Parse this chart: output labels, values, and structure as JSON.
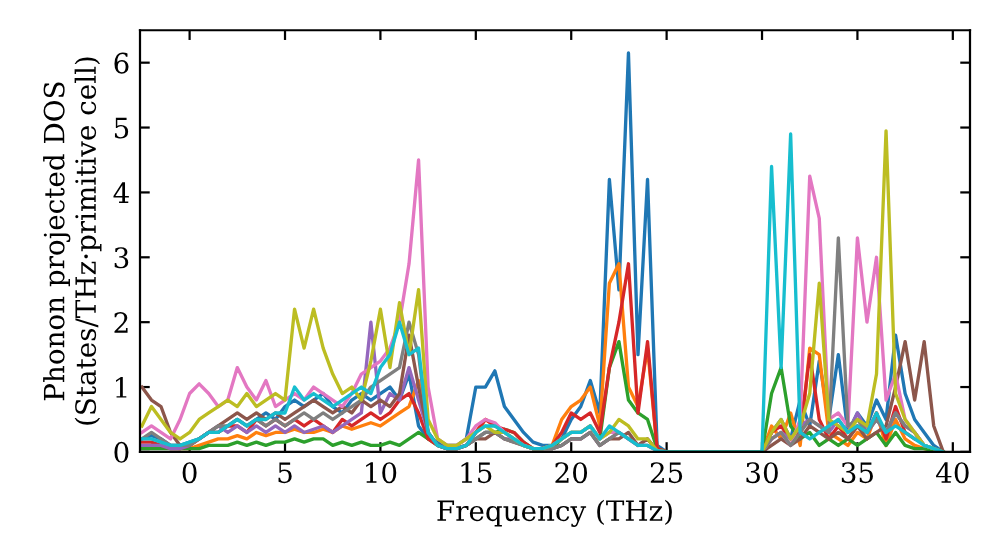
{
  "chart_data": {
    "type": "line",
    "xlabel": "Frequency (THz)",
    "ylabel": "Phonon projected DOS\n(States/THz·primitive cell)",
    "xlim": [
      -2.6,
      40.9
    ],
    "ylim": [
      0,
      6.5
    ],
    "xticks": [
      0,
      5,
      10,
      15,
      20,
      25,
      30,
      35,
      40
    ],
    "yticks": [
      0,
      1,
      2,
      3,
      4,
      5,
      6
    ],
    "grid": false,
    "legend": false,
    "marker": "none",
    "line_style": "solid",
    "x": [
      -2.5,
      -2,
      -1.5,
      -1,
      -0.5,
      0,
      0.5,
      1,
      1.5,
      2,
      2.5,
      3,
      3.5,
      4,
      4.5,
      5,
      5.5,
      6,
      6.5,
      7,
      7.5,
      8,
      8.5,
      9,
      9.5,
      10,
      10.5,
      11,
      11.5,
      12,
      12.5,
      13,
      13.5,
      14,
      14.5,
      15,
      15.5,
      16,
      16.5,
      17,
      17.5,
      18,
      18.5,
      19,
      19.5,
      20,
      20.5,
      21,
      21.5,
      22,
      22.5,
      23,
      23.5,
      24,
      24.5,
      25,
      30,
      30.5,
      31,
      31.5,
      32,
      32.5,
      33,
      33.5,
      34,
      34.5,
      35,
      35.5,
      36,
      36.5,
      37,
      37.5,
      38,
      38.5,
      39,
      39.5
    ],
    "series": [
      {
        "color": "#1f77b4",
        "values": [
          0.2,
          0.25,
          0.2,
          0.1,
          0.1,
          0.15,
          0.2,
          0.3,
          0.3,
          0.4,
          0.5,
          0.4,
          0.5,
          0.6,
          0.5,
          0.7,
          0.8,
          0.7,
          0.8,
          0.9,
          0.7,
          0.6,
          0.8,
          0.9,
          0.8,
          0.9,
          1.0,
          0.8,
          1.2,
          0.4,
          0.2,
          0.15,
          0.1,
          0.1,
          0.2,
          1.0,
          1.0,
          1.25,
          0.7,
          0.5,
          0.3,
          0.15,
          0.1,
          0.1,
          0.2,
          0.5,
          0.7,
          1.1,
          0.6,
          4.2,
          2.5,
          6.15,
          1.5,
          4.2,
          0.1,
          0,
          0,
          0.3,
          0.5,
          0.2,
          0.8,
          0.4,
          1.4,
          0.5,
          1.5,
          0.3,
          0.6,
          0.4,
          0.8,
          0.5,
          1.8,
          0.9,
          0.5,
          0.3,
          0.1,
          0
        ]
      },
      {
        "color": "#ff7f0e",
        "values": [
          null,
          null,
          null,
          null,
          0.05,
          0.05,
          0.1,
          0.15,
          0.2,
          0.2,
          0.25,
          0.2,
          0.3,
          0.25,
          0.3,
          0.3,
          0.35,
          0.3,
          0.3,
          0.35,
          0.3,
          0.4,
          0.35,
          0.4,
          0.45,
          0.4,
          0.5,
          0.6,
          0.7,
          1.1,
          0.3,
          0.1,
          0.05,
          0.05,
          0.1,
          0.3,
          0.5,
          0.4,
          0.3,
          0.2,
          0.1,
          0.05,
          0.05,
          0.1,
          0.5,
          0.7,
          0.8,
          1.0,
          0.4,
          2.6,
          2.9,
          1.0,
          0.7,
          1.6,
          0.05,
          0,
          0,
          0.4,
          0.2,
          0.6,
          0.1,
          1.6,
          1.5,
          0.3,
          0.2,
          0.1,
          0.3,
          0.2,
          0.6,
          0.1,
          0.5,
          0.2,
          0.1,
          0.05,
          0.02,
          0
        ]
      },
      {
        "color": "#2ca02c",
        "values": [
          0.05,
          0.05,
          0.05,
          0.05,
          0.05,
          0.05,
          0.05,
          0.1,
          0.1,
          0.1,
          0.15,
          0.1,
          0.15,
          0.1,
          0.15,
          0.15,
          0.2,
          0.15,
          0.2,
          0.2,
          0.1,
          0.15,
          0.1,
          0.15,
          0.1,
          0.1,
          0.15,
          0.1,
          0.2,
          0.3,
          0.2,
          0.1,
          0.05,
          0.05,
          0.1,
          0.2,
          0.3,
          0.3,
          0.35,
          0.3,
          0.15,
          0.05,
          0.05,
          0.05,
          0.2,
          0.3,
          0.3,
          0.4,
          0.2,
          1.3,
          1.7,
          0.8,
          0.6,
          0.5,
          0.05,
          0,
          0,
          0.9,
          1.3,
          0.4,
          0.2,
          0.3,
          0.1,
          0.2,
          0.1,
          0.2,
          0.1,
          0.2,
          0.3,
          0.1,
          0.3,
          0.1,
          0.05,
          0.05,
          0.02,
          0
        ]
      },
      {
        "color": "#d62728",
        "values": [
          0.15,
          0.15,
          0.1,
          0.05,
          0.05,
          0.1,
          0.2,
          0.3,
          0.3,
          0.4,
          0.4,
          0.3,
          0.5,
          0.4,
          0.5,
          0.4,
          0.5,
          0.4,
          0.5,
          0.4,
          0.3,
          0.5,
          0.4,
          0.5,
          0.6,
          0.5,
          0.6,
          0.8,
          0.9,
          0.6,
          0.2,
          0.1,
          0.05,
          0.05,
          0.1,
          0.3,
          0.5,
          0.4,
          0.35,
          0.3,
          0.15,
          0.05,
          0.05,
          0.1,
          0.3,
          0.6,
          0.5,
          0.6,
          0.3,
          1.3,
          2.0,
          2.9,
          0.6,
          1.7,
          0.05,
          0,
          0,
          0.3,
          0.4,
          0.2,
          0.3,
          1.5,
          0.5,
          0.2,
          0.4,
          0.2,
          0.4,
          0.3,
          0.6,
          0.2,
          0.7,
          0.3,
          0.2,
          null,
          null,
          null
        ]
      },
      {
        "color": "#9467bd",
        "values": [
          0.1,
          0.1,
          0.1,
          0.05,
          0.05,
          0.1,
          0.2,
          0.3,
          0.4,
          0.3,
          0.4,
          0.3,
          0.4,
          0.3,
          0.4,
          0.3,
          0.4,
          0.3,
          0.35,
          0.4,
          0.3,
          0.4,
          0.5,
          0.6,
          2.0,
          0.6,
          0.9,
          0.8,
          1.3,
          0.8,
          0.3,
          0.1,
          0.05,
          0.05,
          0.1,
          0.2,
          0.3,
          0.3,
          0.2,
          0.2,
          0.1,
          0.05,
          0.05,
          0.05,
          0.1,
          0.2,
          0.2,
          0.3,
          0.1,
          0.2,
          0.3,
          0.2,
          0.1,
          0.2,
          0.02,
          0,
          0,
          0.2,
          0.3,
          0.2,
          0.4,
          0.5,
          0.4,
          0.3,
          0.5,
          0.3,
          0.6,
          0.3,
          0.5,
          0.3,
          0.6,
          0.4,
          0.3,
          0.1,
          0.05,
          0
        ]
      },
      {
        "color": "#8c564b",
        "values": [
          1.0,
          0.8,
          0.7,
          0.3,
          0.1,
          0.1,
          0.2,
          0.3,
          0.4,
          0.5,
          0.6,
          0.5,
          0.6,
          0.5,
          0.6,
          0.5,
          0.6,
          0.7,
          0.8,
          0.7,
          0.6,
          0.7,
          0.6,
          0.8,
          0.7,
          0.8,
          0.7,
          0.9,
          1.8,
          1.0,
          0.3,
          0.1,
          0.05,
          0.05,
          0.1,
          0.2,
          0.2,
          0.3,
          0.2,
          0.15,
          0.1,
          0.05,
          0.05,
          0.05,
          0.1,
          0.2,
          0.2,
          0.3,
          0.1,
          0.2,
          0.2,
          0.3,
          0.1,
          0.2,
          0.02,
          0,
          0,
          0.1,
          0.2,
          0.1,
          0.2,
          0.4,
          0.3,
          0.2,
          0.3,
          0.2,
          0.4,
          0.2,
          0.3,
          0.4,
          1.0,
          1.7,
          0.8,
          1.7,
          0.4,
          0
        ]
      },
      {
        "color": "#e377c2",
        "values": [
          0.3,
          0.4,
          0.3,
          0.2,
          0.5,
          0.9,
          1.05,
          0.9,
          0.7,
          0.8,
          1.3,
          1.0,
          0.8,
          1.1,
          0.7,
          0.8,
          0.9,
          0.8,
          1.0,
          0.9,
          0.8,
          0.7,
          0.9,
          1.2,
          1.3,
          1.4,
          1.6,
          2.0,
          2.9,
          4.5,
          1.0,
          0.2,
          0.1,
          0.1,
          0.2,
          0.4,
          0.5,
          0.45,
          0.3,
          0.2,
          0.1,
          0.05,
          0.05,
          0.1,
          0.2,
          0.3,
          0.3,
          0.4,
          0.2,
          0.3,
          0.3,
          0.2,
          0.1,
          0.1,
          0.02,
          0,
          0,
          0.2,
          0.3,
          0.1,
          0.5,
          4.25,
          3.6,
          0.5,
          0.6,
          0.4,
          3.3,
          2.0,
          3.0,
          0.8,
          1.2,
          0.5,
          0.3,
          0.1,
          null,
          null
        ]
      },
      {
        "color": "#7f7f7f",
        "values": [
          0.2,
          0.3,
          0.2,
          0.1,
          0.1,
          0.1,
          0.2,
          0.3,
          0.4,
          0.4,
          0.5,
          0.4,
          0.5,
          0.4,
          0.5,
          0.4,
          0.5,
          0.6,
          0.5,
          0.6,
          0.5,
          0.6,
          0.7,
          0.8,
          1.0,
          1.1,
          1.2,
          1.3,
          2.0,
          1.5,
          0.3,
          0.1,
          0.05,
          0.05,
          0.1,
          0.2,
          0.3,
          0.3,
          0.2,
          0.15,
          0.1,
          0.05,
          0.05,
          0.05,
          0.1,
          0.2,
          0.2,
          0.3,
          0.1,
          0.2,
          0.3,
          0.2,
          0.1,
          0.1,
          0.02,
          0,
          0,
          0.2,
          0.3,
          0.1,
          0.3,
          0.5,
          0.4,
          0.3,
          3.3,
          0.4,
          0.5,
          0.3,
          0.5,
          0.3,
          0.6,
          0.4,
          0.3,
          0.1,
          0.05,
          0
        ]
      },
      {
        "color": "#bcbd22",
        "values": [
          0.4,
          0.7,
          0.5,
          0.3,
          0.2,
          0.3,
          0.5,
          0.6,
          0.7,
          0.8,
          0.7,
          0.9,
          0.7,
          0.8,
          0.9,
          0.8,
          2.2,
          1.6,
          2.2,
          1.6,
          1.2,
          0.9,
          1.0,
          0.8,
          1.4,
          2.2,
          1.3,
          2.3,
          1.5,
          2.5,
          0.5,
          0.2,
          0.1,
          0.1,
          0.2,
          0.3,
          0.4,
          0.3,
          0.3,
          0.2,
          0.1,
          0.05,
          0.05,
          0.1,
          0.2,
          0.3,
          0.3,
          0.4,
          0.2,
          0.3,
          0.5,
          0.4,
          0.2,
          0.2,
          0.02,
          0,
          0,
          0.3,
          0.5,
          0.2,
          0.4,
          0.9,
          2.6,
          0.5,
          0.4,
          0.3,
          0.5,
          0.4,
          1.2,
          4.95,
          0.9,
          0.5,
          0.3,
          0.1,
          0.05,
          0
        ]
      },
      {
        "color": "#17becf",
        "values": [
          0.2,
          0.2,
          0.15,
          0.1,
          0.1,
          0.15,
          0.2,
          0.3,
          0.3,
          0.4,
          0.5,
          0.4,
          0.5,
          0.5,
          0.6,
          0.6,
          1.0,
          0.8,
          0.9,
          0.8,
          0.7,
          0.8,
          0.9,
          1.0,
          0.9,
          1.3,
          1.5,
          2.0,
          1.5,
          1.6,
          0.3,
          0.1,
          0.05,
          0.05,
          0.1,
          0.3,
          0.4,
          0.4,
          0.3,
          0.2,
          0.1,
          0.05,
          0.05,
          0.1,
          0.2,
          0.3,
          0.3,
          0.4,
          0.2,
          0.4,
          0.3,
          0.2,
          0.1,
          0.1,
          0.02,
          0,
          0,
          4.4,
          1.3,
          4.9,
          0.3,
          0.2,
          0.3,
          0.4,
          0.5,
          0.3,
          0.4,
          0.3,
          0.6,
          0.3,
          0.4,
          0.3,
          0.2,
          0.1,
          0.05,
          0
        ]
      }
    ]
  }
}
